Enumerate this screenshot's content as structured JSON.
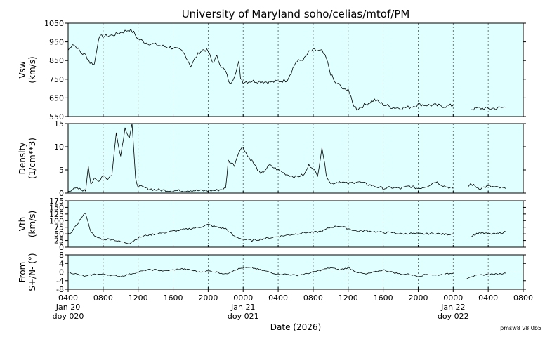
{
  "chart_data": {
    "type": "line",
    "title": "University of Maryland  soho/celias/mtof/PM",
    "xlabel": "Date (2026)",
    "version_label": "pmsw8 v8.0b5",
    "x_range_hours": [
      4,
      56
    ],
    "x_ticks": [
      {
        "h": 4,
        "label": "0400",
        "sub1": "Jan 20",
        "sub2": "doy 020"
      },
      {
        "h": 8,
        "label": "0800"
      },
      {
        "h": 12,
        "label": "1200"
      },
      {
        "h": 16,
        "label": "1600"
      },
      {
        "h": 20,
        "label": "2000"
      },
      {
        "h": 24,
        "label": "0000",
        "sub1": "Jan 21",
        "sub2": "doy 021"
      },
      {
        "h": 28,
        "label": "0400"
      },
      {
        "h": 32,
        "label": "0800"
      },
      {
        "h": 36,
        "label": "1200"
      },
      {
        "h": 40,
        "label": "1600"
      },
      {
        "h": 44,
        "label": "2000"
      },
      {
        "h": 48,
        "label": "0000",
        "sub1": "Jan 22",
        "sub2": "doy 022"
      },
      {
        "h": 52,
        "label": "0400"
      },
      {
        "h": 56,
        "label": "0800"
      }
    ],
    "panels": [
      {
        "id": "vsw",
        "ylabel": [
          "Vsw",
          "(km/s)"
        ],
        "ylim": [
          550,
          1050
        ],
        "yticks": [
          "550",
          "650",
          "750",
          "850",
          "950",
          "1050"
        ],
        "zero_line": false,
        "points": [
          [
            4,
            905
          ],
          [
            4.5,
            940
          ],
          [
            5,
            920
          ],
          [
            5.5,
            890
          ],
          [
            6,
            880
          ],
          [
            6.5,
            840
          ],
          [
            7,
            830
          ],
          [
            7.5,
            975
          ],
          [
            8,
            980
          ],
          [
            9,
            985
          ],
          [
            10,
            1000
          ],
          [
            11,
            1015
          ],
          [
            11.5,
            1000
          ],
          [
            12,
            965
          ],
          [
            13,
            945
          ],
          [
            14,
            935
          ],
          [
            15,
            925
          ],
          [
            16,
            918
          ],
          [
            17,
            900
          ],
          [
            17.5,
            870
          ],
          [
            18,
            820
          ],
          [
            18.5,
            860
          ],
          [
            19,
            895
          ],
          [
            19.5,
            910
          ],
          [
            20,
            900
          ],
          [
            20.5,
            840
          ],
          [
            21,
            870
          ],
          [
            21.5,
            820
          ],
          [
            22,
            790
          ],
          [
            22.5,
            720
          ],
          [
            23,
            770
          ],
          [
            23.5,
            840
          ],
          [
            23.7,
            760
          ],
          [
            24,
            735
          ],
          [
            25,
            740
          ],
          [
            26,
            738
          ],
          [
            27,
            735
          ],
          [
            28,
            738
          ],
          [
            29,
            745
          ],
          [
            29.5,
            790
          ],
          [
            30,
            840
          ],
          [
            31,
            860
          ],
          [
            31.5,
            895
          ],
          [
            32,
            905
          ],
          [
            33,
            900
          ],
          [
            33.5,
            860
          ],
          [
            34,
            780
          ],
          [
            34.5,
            730
          ],
          [
            35,
            720
          ],
          [
            35.5,
            690
          ],
          [
            36,
            700
          ],
          [
            36.5,
            620
          ],
          [
            37,
            590
          ],
          [
            38,
            615
          ],
          [
            39,
            640
          ],
          [
            40,
            615
          ],
          [
            41,
            600
          ],
          [
            42,
            595
          ],
          [
            43,
            600
          ],
          [
            44,
            615
          ],
          [
            45,
            612
          ],
          [
            46,
            610
          ],
          [
            47,
            605
          ],
          [
            48,
            610
          ]
        ],
        "points2": [
          [
            50,
            590
          ],
          [
            51,
            595
          ],
          [
            52,
            592
          ],
          [
            53,
            595
          ],
          [
            54,
            600
          ]
        ]
      },
      {
        "id": "density",
        "ylabel": [
          "Density",
          "(1/cm**3)"
        ],
        "ylim": [
          0,
          15
        ],
        "yticks": [
          "0",
          "5",
          "10",
          "15"
        ],
        "zero_line": false,
        "points": [
          [
            4,
            0.5
          ],
          [
            5,
            1
          ],
          [
            6,
            0.5
          ],
          [
            6.3,
            6
          ],
          [
            6.6,
            2
          ],
          [
            7,
            3
          ],
          [
            7.5,
            2.5
          ],
          [
            8,
            4
          ],
          [
            8.5,
            3
          ],
          [
            9,
            4
          ],
          [
            9.5,
            13
          ],
          [
            10,
            8
          ],
          [
            10.5,
            14
          ],
          [
            11,
            12
          ],
          [
            11.3,
            15
          ],
          [
            11.7,
            3
          ],
          [
            12,
            1.5
          ],
          [
            13,
            1
          ],
          [
            14,
            0.7
          ],
          [
            15,
            0.6
          ],
          [
            16,
            0.5
          ],
          [
            17,
            0.5
          ],
          [
            18,
            0.6
          ],
          [
            19,
            0.5
          ],
          [
            20,
            0.5
          ],
          [
            21,
            0.6
          ],
          [
            22,
            1
          ],
          [
            22.3,
            7
          ],
          [
            23,
            6
          ],
          [
            23.5,
            9
          ],
          [
            24,
            10
          ],
          [
            24.5,
            8
          ],
          [
            25,
            7
          ],
          [
            26,
            4
          ],
          [
            27,
            6
          ],
          [
            28,
            5
          ],
          [
            29,
            4
          ],
          [
            30,
            3.5
          ],
          [
            31,
            4
          ],
          [
            31.5,
            6
          ],
          [
            32,
            5.5
          ],
          [
            32.5,
            3.5
          ],
          [
            33,
            10
          ],
          [
            33.5,
            4
          ],
          [
            34,
            2
          ],
          [
            35,
            2.5
          ],
          [
            36,
            2
          ],
          [
            37,
            2.5
          ],
          [
            38,
            2
          ],
          [
            39,
            1.5
          ],
          [
            40,
            1
          ],
          [
            41,
            1.2
          ],
          [
            42,
            1
          ],
          [
            43,
            1.5
          ],
          [
            44,
            1
          ],
          [
            45,
            1.5
          ],
          [
            46,
            2.5
          ],
          [
            47,
            1.5
          ],
          [
            48,
            1
          ]
        ],
        "points2": [
          [
            49.5,
            1
          ],
          [
            50,
            2
          ],
          [
            51,
            1
          ],
          [
            52,
            1.5
          ],
          [
            53,
            1.2
          ],
          [
            54,
            1
          ]
        ]
      },
      {
        "id": "vth",
        "ylabel": [
          "Vth",
          "(km/s)"
        ],
        "ylim": [
          0,
          175
        ],
        "yticks": [
          "0",
          "25",
          "50",
          "75",
          "100",
          "125",
          "150",
          "175"
        ],
        "zero_line": false,
        "points": [
          [
            4,
            50
          ],
          [
            4.5,
            60
          ],
          [
            5,
            85
          ],
          [
            5.5,
            110
          ],
          [
            6,
            130
          ],
          [
            6.3,
            90
          ],
          [
            6.6,
            60
          ],
          [
            7,
            40
          ],
          [
            8,
            30
          ],
          [
            9,
            30
          ],
          [
            10,
            20
          ],
          [
            11,
            15
          ],
          [
            12,
            35
          ],
          [
            13,
            45
          ],
          [
            14,
            50
          ],
          [
            15,
            55
          ],
          [
            16,
            60
          ],
          [
            17,
            65
          ],
          [
            18,
            70
          ],
          [
            19,
            75
          ],
          [
            20,
            85
          ],
          [
            21,
            75
          ],
          [
            22,
            70
          ],
          [
            23,
            40
          ],
          [
            24,
            30
          ],
          [
            25,
            25
          ],
          [
            26,
            30
          ],
          [
            27,
            35
          ],
          [
            28,
            40
          ],
          [
            29,
            45
          ],
          [
            30,
            50
          ],
          [
            31,
            55
          ],
          [
            32,
            55
          ],
          [
            33,
            60
          ],
          [
            34,
            75
          ],
          [
            35,
            80
          ],
          [
            36,
            70
          ],
          [
            37,
            60
          ],
          [
            38,
            62
          ],
          [
            39,
            58
          ],
          [
            40,
            55
          ],
          [
            41,
            55
          ],
          [
            42,
            50
          ],
          [
            43,
            52
          ],
          [
            44,
            50
          ],
          [
            45,
            50
          ],
          [
            46,
            52
          ],
          [
            47,
            48
          ],
          [
            48,
            50
          ]
        ],
        "points2": [
          [
            50,
            40
          ],
          [
            51,
            55
          ],
          [
            52,
            50
          ],
          [
            53,
            50
          ],
          [
            54,
            58
          ]
        ]
      },
      {
        "id": "from",
        "ylabel": [
          "From",
          "S+/N- (°)"
        ],
        "ylim": [
          -8,
          8
        ],
        "yticks": [
          "-8",
          "-4",
          "0",
          "4",
          "8"
        ],
        "zero_line": true,
        "points": [
          [
            4,
            0
          ],
          [
            5,
            -1
          ],
          [
            6,
            -2
          ],
          [
            7,
            -1
          ],
          [
            8,
            -1
          ],
          [
            9,
            -1.5
          ],
          [
            10,
            -2
          ],
          [
            11,
            -1
          ],
          [
            12,
            0
          ],
          [
            13,
            1
          ],
          [
            14,
            1
          ],
          [
            15,
            0.5
          ],
          [
            16,
            1
          ],
          [
            17,
            1.5
          ],
          [
            18,
            1
          ],
          [
            19,
            0
          ],
          [
            20,
            0.5
          ],
          [
            21,
            0
          ],
          [
            22,
            -1
          ],
          [
            23,
            1
          ],
          [
            24,
            2
          ],
          [
            25,
            2
          ],
          [
            26,
            1
          ],
          [
            27,
            0
          ],
          [
            28,
            -1
          ],
          [
            29,
            -1
          ],
          [
            30,
            -1.5
          ],
          [
            31,
            -1
          ],
          [
            32,
            0
          ],
          [
            33,
            1
          ],
          [
            34,
            2
          ],
          [
            35,
            1
          ],
          [
            36,
            2
          ],
          [
            37,
            0
          ],
          [
            38,
            -1
          ],
          [
            39,
            0
          ],
          [
            40,
            1
          ],
          [
            41,
            0
          ],
          [
            42,
            -1
          ],
          [
            43,
            -1
          ],
          [
            44,
            -2
          ],
          [
            45,
            -1
          ],
          [
            46,
            -1.5
          ],
          [
            47,
            -1
          ],
          [
            48,
            -0.5
          ]
        ],
        "points2": [
          [
            49.5,
            -3
          ],
          [
            50,
            -2
          ],
          [
            51,
            -1.5
          ],
          [
            52,
            -1
          ],
          [
            53,
            -1
          ],
          [
            54,
            -0.5
          ]
        ]
      }
    ]
  }
}
